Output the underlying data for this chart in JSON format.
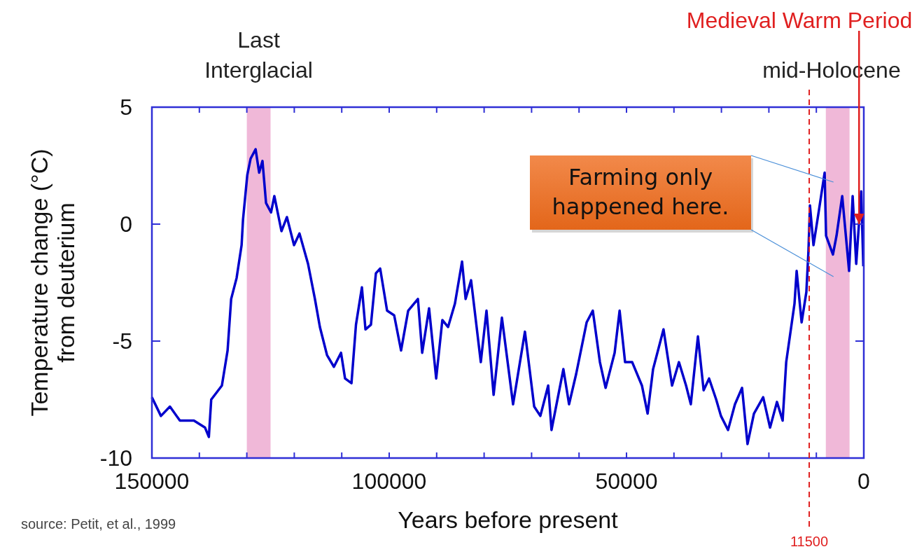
{
  "chart_data": {
    "type": "line",
    "xlabel": "Years before present",
    "ylabel": "Temperature change (°C)\nfrom deuterium",
    "xlim": [
      150000,
      0
    ],
    "ylim": [
      -10,
      5
    ],
    "xticks": [
      150000,
      {
        "value": 140000,
        "label": null
      },
      {
        "value": 130000,
        "label": null
      },
      {
        "value": 120000,
        "label": null
      },
      {
        "value": 110000,
        "label": null
      },
      100000,
      {
        "value": 90000,
        "label": null
      },
      {
        "value": 80000,
        "label": null
      },
      {
        "value": 70000,
        "label": null
      },
      {
        "value": 60000,
        "label": null
      },
      50000,
      {
        "value": 40000,
        "label": null
      },
      {
        "value": 30000,
        "label": null
      },
      {
        "value": 20000,
        "label": null
      },
      {
        "value": 10000,
        "label": null
      },
      0
    ],
    "yticks": [
      5,
      0,
      -5,
      -10
    ],
    "grid": false,
    "marker": "none",
    "line_style": "solid",
    "x": [
      150000,
      148100,
      146200,
      144100,
      141150,
      138800,
      138000,
      137500,
      135250,
      134050,
      133300,
      132150,
      131100,
      130800,
      129900,
      129200,
      128150,
      127400,
      126700,
      125950,
      124900,
      124200,
      122700,
      121550,
      120050,
      118900,
      117100,
      115650,
      114600,
      113100,
      111650,
      110150,
      109300,
      107950,
      107000,
      105750,
      105000,
      103850,
      102800,
      101900,
      100450,
      98950,
      97500,
      96000,
      93950,
      93050,
      91600,
      90100,
      88800,
      87600,
      86150,
      84650,
      83900,
      82750,
      80700,
      79500,
      78000,
      76250,
      73900,
      71400,
      69450,
      68150,
      66500,
      65800,
      63300,
      62100,
      60600,
      58400,
      57100,
      55600,
      54400,
      52500,
      51450,
      50300,
      48800,
      46750,
      45550,
      44400,
      42200,
      40400,
      38950,
      37450,
      36450,
      34950,
      33750,
      32600,
      31100,
      30100,
      28600,
      27150,
      25650,
      24500,
      23150,
      21200,
      19750,
      18300,
      17100,
      16350,
      15300,
      14600,
      14150,
      13100,
      12100,
      11650,
      11350,
      10600,
      9450,
      8250,
      7950,
      6500,
      5750,
      4550,
      3100,
      2350,
      1600,
      550,
      100
    ],
    "series": [
      {
        "color": "#0000cc",
        "values": [
          -7.4,
          -8.2,
          -7.8,
          -8.4,
          -8.4,
          -8.7,
          -9.1,
          -7.5,
          -6.9,
          -5.4,
          -3.2,
          -2.3,
          -0.9,
          0.2,
          2.1,
          2.8,
          3.2,
          2.2,
          2.7,
          0.9,
          0.5,
          1.2,
          -0.3,
          0.3,
          -0.9,
          -0.4,
          -1.7,
          -3.2,
          -4.4,
          -5.6,
          -6.1,
          -5.5,
          -6.6,
          -6.8,
          -4.3,
          -2.7,
          -4.5,
          -4.3,
          -2.1,
          -1.9,
          -3.7,
          -3.9,
          -5.4,
          -3.7,
          -3.2,
          -5.5,
          -3.6,
          -6.6,
          -4.1,
          -4.4,
          -3.4,
          -1.6,
          -3.2,
          -2.4,
          -5.9,
          -3.7,
          -7.3,
          -4.0,
          -7.7,
          -4.6,
          -7.8,
          -8.2,
          -6.9,
          -8.8,
          -6.2,
          -7.7,
          -6.4,
          -4.2,
          -3.7,
          -5.9,
          -7.0,
          -5.5,
          -3.7,
          -5.9,
          -5.9,
          -6.9,
          -8.1,
          -6.2,
          -4.5,
          -6.9,
          -5.9,
          -6.9,
          -7.7,
          -4.8,
          -7.1,
          -6.6,
          -7.5,
          -8.2,
          -8.8,
          -7.7,
          -7.0,
          -9.4,
          -8.1,
          -7.4,
          -8.7,
          -7.6,
          -8.4,
          -5.9,
          -4.4,
          -3.4,
          -2.0,
          -4.2,
          -2.9,
          -1.1,
          0.8,
          -0.9,
          0.6,
          2.2,
          -0.5,
          -1.3,
          -0.5,
          1.2,
          -2.0,
          1.2,
          -1.7,
          1.4,
          -1.8
        ]
      }
    ],
    "bands": [
      {
        "axis": "x",
        "from": 130000,
        "to": 125000,
        "label": "Last Interglacial",
        "color": "#f0b8d8"
      },
      {
        "axis": "x",
        "from": 8000,
        "to": 3000,
        "label": "mid-Holocene",
        "color": "#f0b8d8"
      }
    ],
    "ref_lines": [
      {
        "axis": "x",
        "value": 11500,
        "label": "11500",
        "color": "#e02020",
        "line_style": "dashed"
      }
    ],
    "annotations": [
      {
        "text": "Medieval Warm Period",
        "x": 1000,
        "y": 0
      },
      "Farming only happened here.",
      "source: Petit, et al., 1999"
    ]
  }
}
